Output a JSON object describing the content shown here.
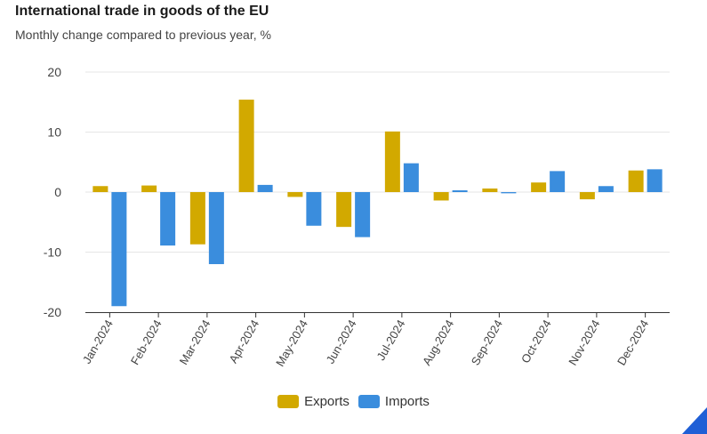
{
  "header": {
    "title": "International trade in goods of the EU",
    "subtitle": "Monthly change compared to previous year, %"
  },
  "colors": {
    "exports": "#d2a900",
    "imports": "#3a8ddd",
    "grid": "#e6e6e6",
    "corner": "#1f5fd6"
  },
  "chart_data": {
    "type": "bar",
    "title": "International trade in goods of the EU",
    "subtitle": "Monthly change compared to previous year, %",
    "xlabel": "",
    "ylabel": "",
    "ylim": [
      -20,
      20
    ],
    "yticks": [
      20,
      10,
      0,
      -10,
      -20
    ],
    "yticks_labels": [
      "20",
      "10",
      "0",
      "-10",
      "-20"
    ],
    "grid": true,
    "legend_position": "bottom-center",
    "categories": [
      "Jan-2024",
      "Feb-2024",
      "Mar-2024",
      "Apr-2024",
      "May-2024",
      "Jun-2024",
      "Jul-2024",
      "Aug-2024",
      "Sep-2024",
      "Oct-2024",
      "Nov-2024",
      "Dec-2024"
    ],
    "series": [
      {
        "name": "Exports",
        "values": [
          1.0,
          1.1,
          -8.7,
          15.4,
          -0.8,
          -5.8,
          10.1,
          -1.4,
          0.6,
          1.6,
          -1.2,
          3.6
        ]
      },
      {
        "name": "Imports",
        "values": [
          -19.0,
          -8.9,
          -12.0,
          1.2,
          -5.6,
          -7.5,
          4.8,
          0.3,
          -0.2,
          3.5,
          1.0,
          3.8
        ]
      }
    ]
  }
}
